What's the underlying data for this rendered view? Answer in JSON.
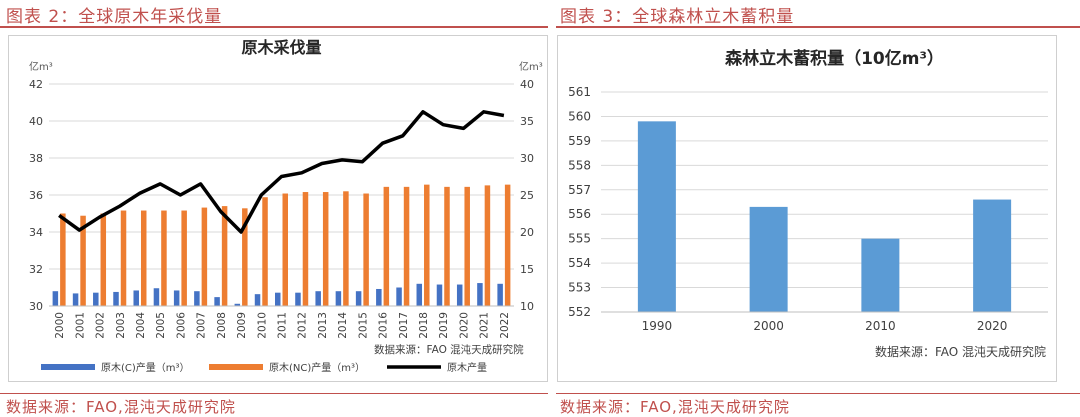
{
  "figures": [
    {
      "caption": "图表 2：全球原木年采伐量",
      "source_note": "数据来源：FAO,混沌天成研究院"
    },
    {
      "caption": "图表 3：全球森林立木蓄积量",
      "source_note": "数据来源：FAO,混沌天成研究院"
    }
  ],
  "chart_data": [
    {
      "type": "bar",
      "title": "原木采伐量",
      "ylabel": "亿m³",
      "y2label": "亿m³",
      "ylim": [
        30,
        42
      ],
      "y_ticks": [
        30,
        32,
        34,
        36,
        38,
        40,
        42
      ],
      "y2lim": [
        10,
        40
      ],
      "y2_ticks": [
        10,
        15,
        20,
        25,
        30,
        35,
        40
      ],
      "categories": [
        "2000",
        "2001",
        "2002",
        "2003",
        "2004",
        "2005",
        "2006",
        "2007",
        "2008",
        "2009",
        "2010",
        "2011",
        "2012",
        "2013",
        "2014",
        "2015",
        "2016",
        "2017",
        "2018",
        "2019",
        "2020",
        "2021",
        "2022"
      ],
      "series": [
        {
          "name": "原木(C)产量（m³）",
          "type": "bar",
          "axis": "right",
          "color": "#4472c4",
          "values": [
            12.0,
            11.7,
            11.8,
            11.9,
            12.1,
            12.4,
            12.1,
            12.0,
            11.2,
            10.3,
            11.6,
            11.8,
            11.8,
            12.0,
            12.0,
            12.0,
            12.3,
            12.5,
            13.0,
            12.9,
            12.9,
            13.1,
            13.0
          ]
        },
        {
          "name": "原木(NC)产量（m³）",
          "type": "bar",
          "axis": "right",
          "color": "#ed7d31",
          "values": [
            22.5,
            22.2,
            22.5,
            22.9,
            22.9,
            22.9,
            22.9,
            23.3,
            23.5,
            23.2,
            24.7,
            25.2,
            25.4,
            25.4,
            25.5,
            25.2,
            26.1,
            26.1,
            26.4,
            26.1,
            26.1,
            26.3,
            26.4
          ]
        },
        {
          "name": "原木产量",
          "type": "line",
          "axis": "left",
          "color": "#000000",
          "values": [
            34.9,
            34.1,
            34.8,
            35.4,
            36.1,
            36.6,
            36.0,
            36.6,
            35.1,
            34.0,
            36.0,
            37.0,
            37.2,
            37.7,
            37.9,
            37.8,
            38.8,
            39.2,
            40.5,
            39.8,
            39.6,
            40.5,
            40.3
          ]
        }
      ],
      "source_note": "数据来源：FAO 混沌天成研究院",
      "legend_position": "bottom",
      "grid": true
    },
    {
      "type": "bar",
      "title": "森林立木蓄积量（10亿m³）",
      "categories": [
        "1990",
        "2000",
        "2010",
        "2020"
      ],
      "values": [
        559.8,
        556.3,
        555.0,
        556.6
      ],
      "ylim": [
        552,
        561
      ],
      "y_ticks": [
        552,
        553,
        554,
        555,
        556,
        557,
        558,
        559,
        560,
        561
      ],
      "color": "#5b9bd5",
      "source_note": "数据来源：FAO 混沌天成研究院",
      "grid": true
    }
  ]
}
